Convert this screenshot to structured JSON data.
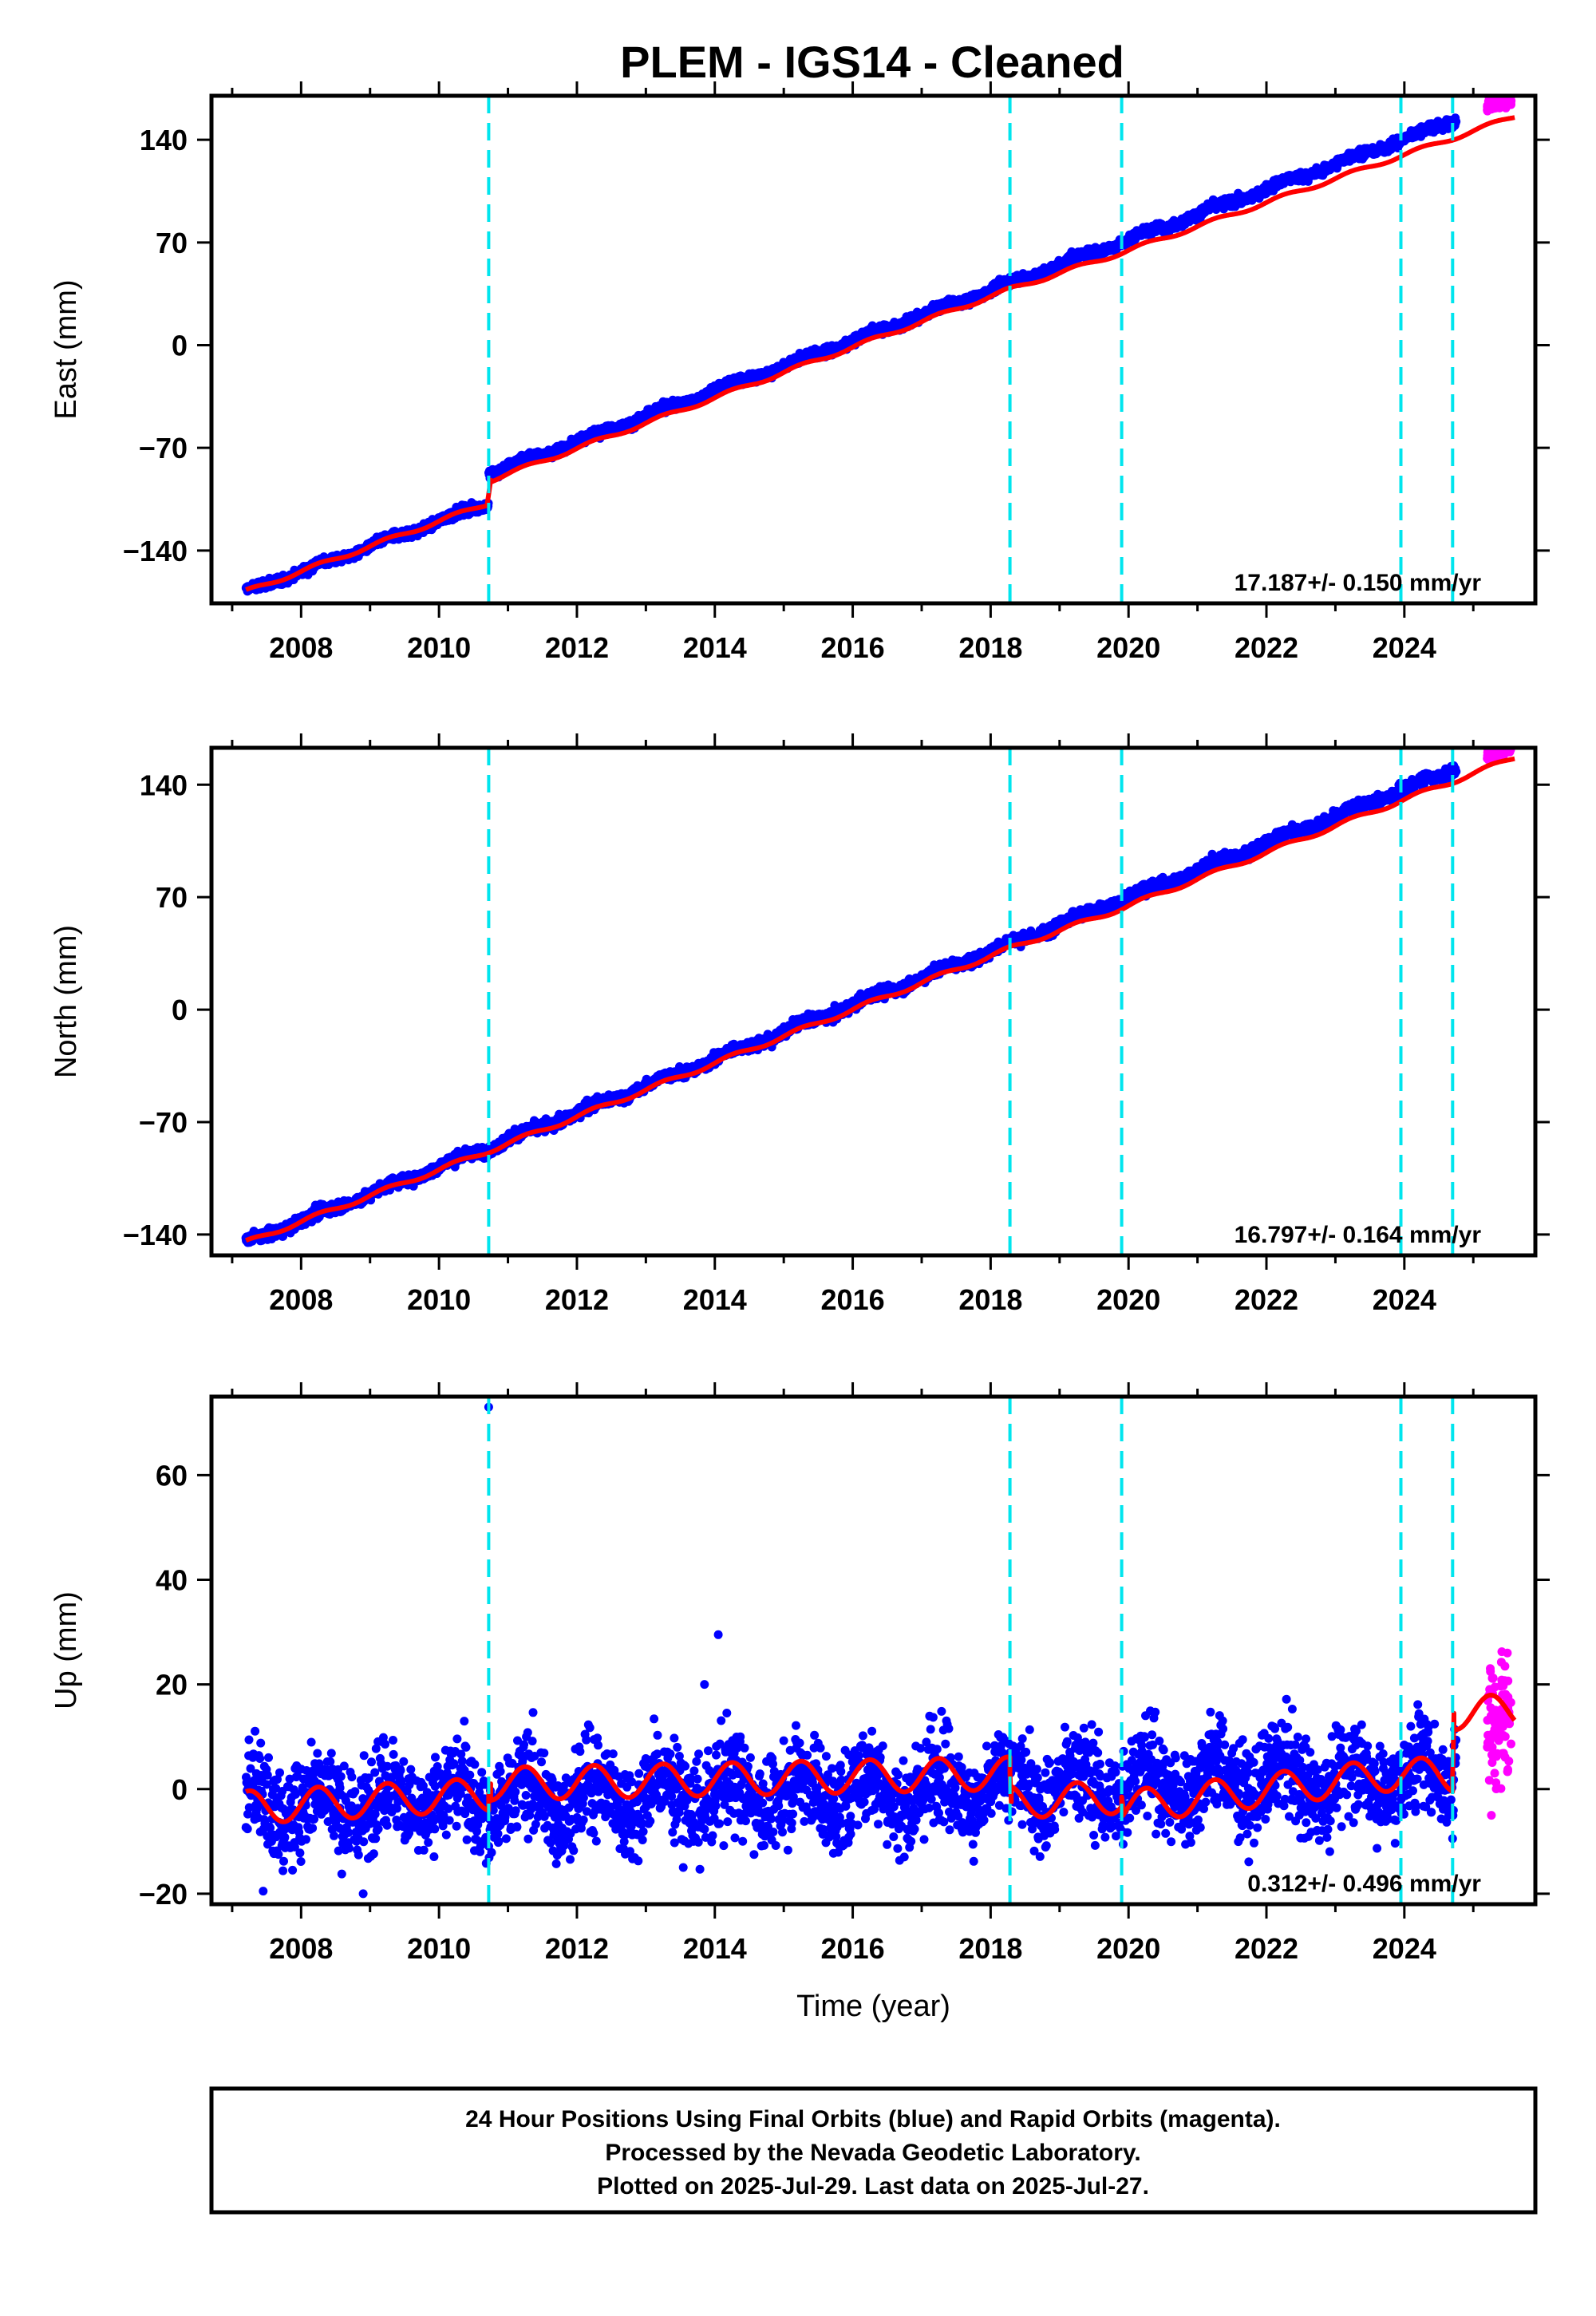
{
  "figure": {
    "title": "PLEM  - IGS14 - Cleaned",
    "footer_lines": [
      "24 Hour Positions Using Final Orbits (blue) and Rapid Orbits (magenta).",
      "Processed by the Nevada Geodetic Laboratory.",
      "Plotted on 2025-Jul-29. Last data on 2025-Jul-27."
    ]
  },
  "colors": {
    "final_orbits": "#0000ff",
    "rapid_orbits": "#ff00ff",
    "model": "#ff0000",
    "steps": "#00e5ee",
    "axes": "#000000"
  },
  "chart_data": [
    {
      "type": "scatter",
      "name": "east",
      "ylabel": "East (mm)",
      "xlabel": "",
      "xlim": [
        2006.7,
        2025.9
      ],
      "ylim": [
        -176,
        170
      ],
      "x_ticks": [
        2008,
        2010,
        2012,
        2014,
        2016,
        2018,
        2020,
        2022,
        2024
      ],
      "x_tick_labels": [
        "2008",
        "2010",
        "2012",
        "2014",
        "2016",
        "2018",
        "2020",
        "2022",
        "2024"
      ],
      "y_ticks": [
        -140,
        -70,
        0,
        70,
        140
      ],
      "y_tick_labels": [
        "−140",
        "−70",
        "0",
        "70",
        "140"
      ],
      "rate_label": "17.187+/- 0.150 mm/yr",
      "steps": [
        2010.72,
        2018.28,
        2019.9,
        2023.95,
        2024.7
      ],
      "final_range": [
        2007.2,
        2024.75
      ],
      "rapid_range": [
        2025.2,
        2025.55
      ],
      "trend": {
        "t0": 2007.2,
        "v0": -168,
        "rate": 17.187,
        "offset_time": 2010.72,
        "offset": 20
      },
      "annual_amplitude": 1.5,
      "scatter_sd": 1.6,
      "model_points": [
        [
          2007.2,
          -168
        ],
        [
          2010.7,
          -108
        ],
        [
          2010.75,
          -92
        ],
        [
          2018.28,
          38
        ],
        [
          2019.9,
          63
        ],
        [
          2023.95,
          129
        ],
        [
          2024.7,
          141
        ],
        [
          2025.6,
          156
        ]
      ]
    },
    {
      "type": "scatter",
      "name": "north",
      "ylabel": "North (mm)",
      "xlabel": "",
      "xlim": [
        2006.7,
        2025.9
      ],
      "ylim": [
        -153,
        163
      ],
      "x_ticks": [
        2008,
        2010,
        2012,
        2014,
        2016,
        2018,
        2020,
        2022,
        2024
      ],
      "x_tick_labels": [
        "2008",
        "2010",
        "2012",
        "2014",
        "2016",
        "2018",
        "2020",
        "2022",
        "2024"
      ],
      "y_ticks": [
        -140,
        -70,
        0,
        70,
        140
      ],
      "y_tick_labels": [
        "−140",
        "−70",
        "0",
        "70",
        "140"
      ],
      "rate_label": "16.797+/- 0.164 mm/yr",
      "steps": [
        2010.72,
        2018.28,
        2019.9,
        2023.95,
        2024.7
      ],
      "final_range": [
        2007.2,
        2024.75
      ],
      "rapid_range": [
        2025.2,
        2025.55
      ],
      "trend": {
        "t0": 2007.2,
        "v0": -145,
        "rate": 16.797,
        "offset_time": null,
        "offset": 0
      },
      "annual_amplitude": 1.5,
      "scatter_sd": 1.7,
      "model_points": [
        [
          2007.2,
          -145
        ],
        [
          2010.72,
          -88
        ],
        [
          2018.28,
          38
        ],
        [
          2019.9,
          63
        ],
        [
          2023.95,
          130
        ],
        [
          2024.7,
          142
        ],
        [
          2025.6,
          157
        ]
      ]
    },
    {
      "type": "scatter",
      "name": "up",
      "ylabel": "Up (mm)",
      "xlabel": "Time (year)",
      "xlim": [
        2006.7,
        2025.9
      ],
      "ylim": [
        -22,
        75
      ],
      "x_ticks": [
        2008,
        2010,
        2012,
        2014,
        2016,
        2018,
        2020,
        2022,
        2024
      ],
      "x_tick_labels": [
        "2008",
        "2010",
        "2012",
        "2014",
        "2016",
        "2018",
        "2020",
        "2022",
        "2024"
      ],
      "y_ticks": [
        -20,
        0,
        20,
        40,
        60
      ],
      "y_tick_labels": [
        "−20",
        "0",
        "20",
        "40",
        "60"
      ],
      "rate_label": "0.312+/- 0.496 mm/yr",
      "steps": [
        2010.72,
        2018.28,
        2019.9,
        2023.95,
        2024.7
      ],
      "final_range": [
        2007.2,
        2024.75
      ],
      "rapid_range": [
        2025.2,
        2025.55
      ],
      "trend": {
        "t0": 2007.2,
        "v0": -3,
        "rate": 0.312,
        "offset_time": null,
        "offset": 0
      },
      "annual_amplitude": 3.5,
      "scatter_sd": 4.5,
      "outliers": [
        [
          2010.72,
          73
        ],
        [
          2014.05,
          29.5
        ],
        [
          2013.85,
          20
        ],
        [
          2007.45,
          -19.5
        ],
        [
          2008.9,
          -20
        ]
      ],
      "model_points": [
        [
          2007.2,
          -3.5
        ],
        [
          2010.72,
          -1
        ],
        [
          2010.75,
          1
        ],
        [
          2018.28,
          3
        ],
        [
          2018.3,
          -2.5
        ],
        [
          2019.9,
          -1.5
        ],
        [
          2019.92,
          -3.5
        ],
        [
          2023.95,
          3
        ],
        [
          2024.7,
          2.5
        ],
        [
          2024.72,
          14.5
        ],
        [
          2025.6,
          15
        ]
      ]
    }
  ]
}
